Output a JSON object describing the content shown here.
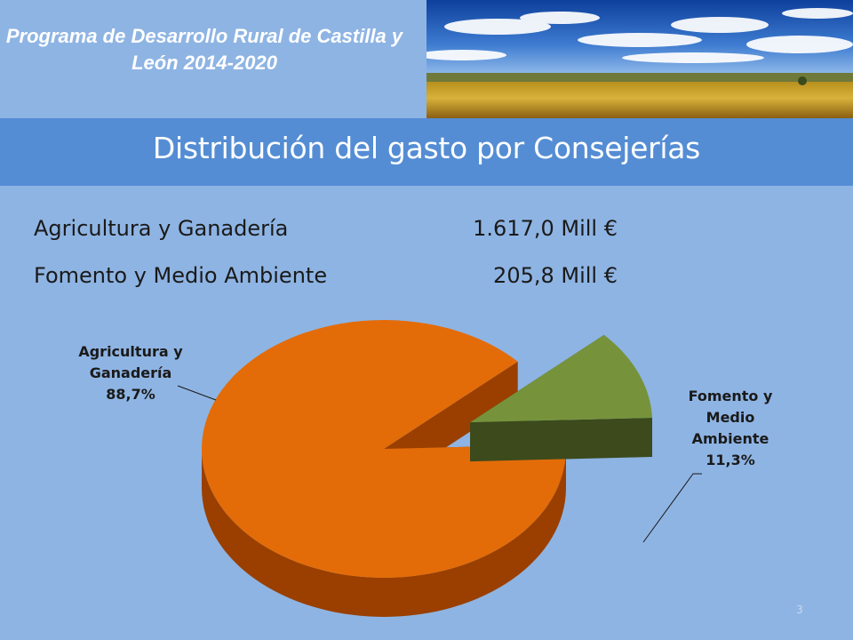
{
  "header": {
    "program_title": "Programa de Desarrollo Rural de Castilla y León 2014-2020"
  },
  "slide": {
    "title": "Distribución del gasto por Consejerías",
    "page_number": "3"
  },
  "spending": [
    {
      "label": "Agricultura y Ganadería",
      "value": "1.617,0  Mill €"
    },
    {
      "label": "Fomento y Medio Ambiente",
      "value": "205,8 Mill €"
    }
  ],
  "chart_data": {
    "type": "pie",
    "style": "3d-exploded",
    "categories": [
      "Agricultura y Ganadería",
      "Fomento y Medio Ambiente"
    ],
    "values": [
      88.7,
      11.3
    ],
    "labels": [
      "Agricultura y Ganadería 88,7%",
      "Fomento y Medio Ambiente 11,3%"
    ],
    "colors": [
      "#e36c09",
      "#76933c"
    ],
    "side_colors": [
      "#9a3f00",
      "#3c4a1c"
    ]
  },
  "colors": {
    "background": "#8eb4e3",
    "title_band": "#548dd4"
  }
}
